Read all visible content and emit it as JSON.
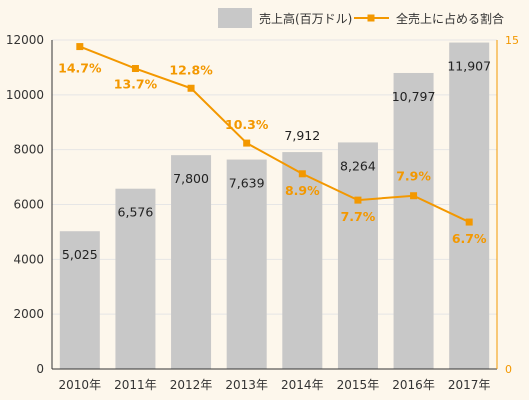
{
  "chart_data": {
    "type": "bar",
    "categories": [
      "2010年",
      "2011年",
      "2012年",
      "2013年",
      "2014年",
      "2015年",
      "2016年",
      "2017年"
    ],
    "series": [
      {
        "name": "売上高(百万ドル)",
        "type": "bar",
        "axis": "left",
        "values": [
          5025,
          6576,
          7800,
          7639,
          7912,
          8264,
          10797,
          11907
        ],
        "value_labels": [
          "5,025",
          "6,576",
          "7,800",
          "7,639",
          "7,912",
          "8,264",
          "10,797",
          "11,907"
        ]
      },
      {
        "name": "全売上に占める割合",
        "type": "line",
        "axis": "right",
        "values": [
          14.7,
          13.7,
          12.8,
          10.3,
          8.9,
          7.7,
          7.9,
          6.7
        ],
        "value_labels": [
          "14.7%",
          "13.7%",
          "12.8%",
          "10.3%",
          "8.9%",
          "7.7%",
          "7.9%",
          "6.7%"
        ]
      }
    ],
    "left_axis": {
      "ylim": [
        0,
        12000
      ],
      "ticks": [
        0,
        2000,
        4000,
        6000,
        8000,
        10000,
        12000
      ]
    },
    "right_axis": {
      "ylim": [
        0,
        15
      ],
      "ticks": [
        0,
        15
      ]
    },
    "legend_position": "top-right",
    "grid": true,
    "colors": {
      "bar": "#c8c8c8",
      "line": "#f39800",
      "grid": "#e6e6e6",
      "background": "#fdf7ec"
    }
  }
}
